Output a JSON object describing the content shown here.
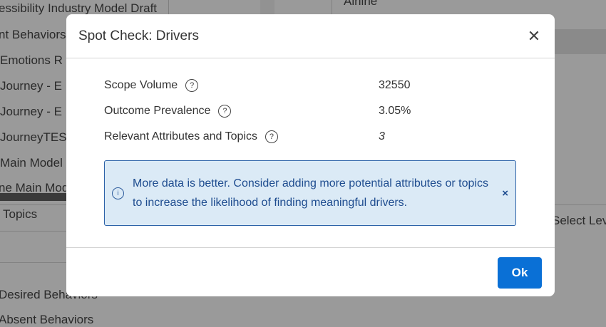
{
  "background": {
    "list_items": [
      "essibility Industry Model Draft",
      "nt Behaviors",
      "Emotions R",
      "Journey - E",
      "Journey - E",
      "JourneyTES",
      "Main Model",
      "ne Main Mod"
    ],
    "topics_label": "Topics",
    "bottom_items": [
      "Desired Behaviors",
      "Absent Behaviors"
    ],
    "right_header": "Airline",
    "select_level": "Select Lev"
  },
  "modal": {
    "title": "Spot Check: Drivers",
    "close_icon": "close-icon",
    "rows": [
      {
        "label": "Scope Volume",
        "value": "32550"
      },
      {
        "label": "Outcome Prevalence",
        "value": "3.05%"
      },
      {
        "label": "Relevant Attributes and Topics",
        "value": "3"
      }
    ],
    "alert": {
      "icon": "info-icon",
      "text": "More data is better. Consider adding more potential attributes or topics to increase the likelihood of finding meaningful drivers.",
      "dismiss": "×"
    },
    "ok_label": "Ok"
  },
  "colors": {
    "primary": "#0a70d6",
    "alert_bg": "#dbeaf6",
    "alert_text": "#1e4c8f",
    "overlay": "#9a9a9a"
  }
}
